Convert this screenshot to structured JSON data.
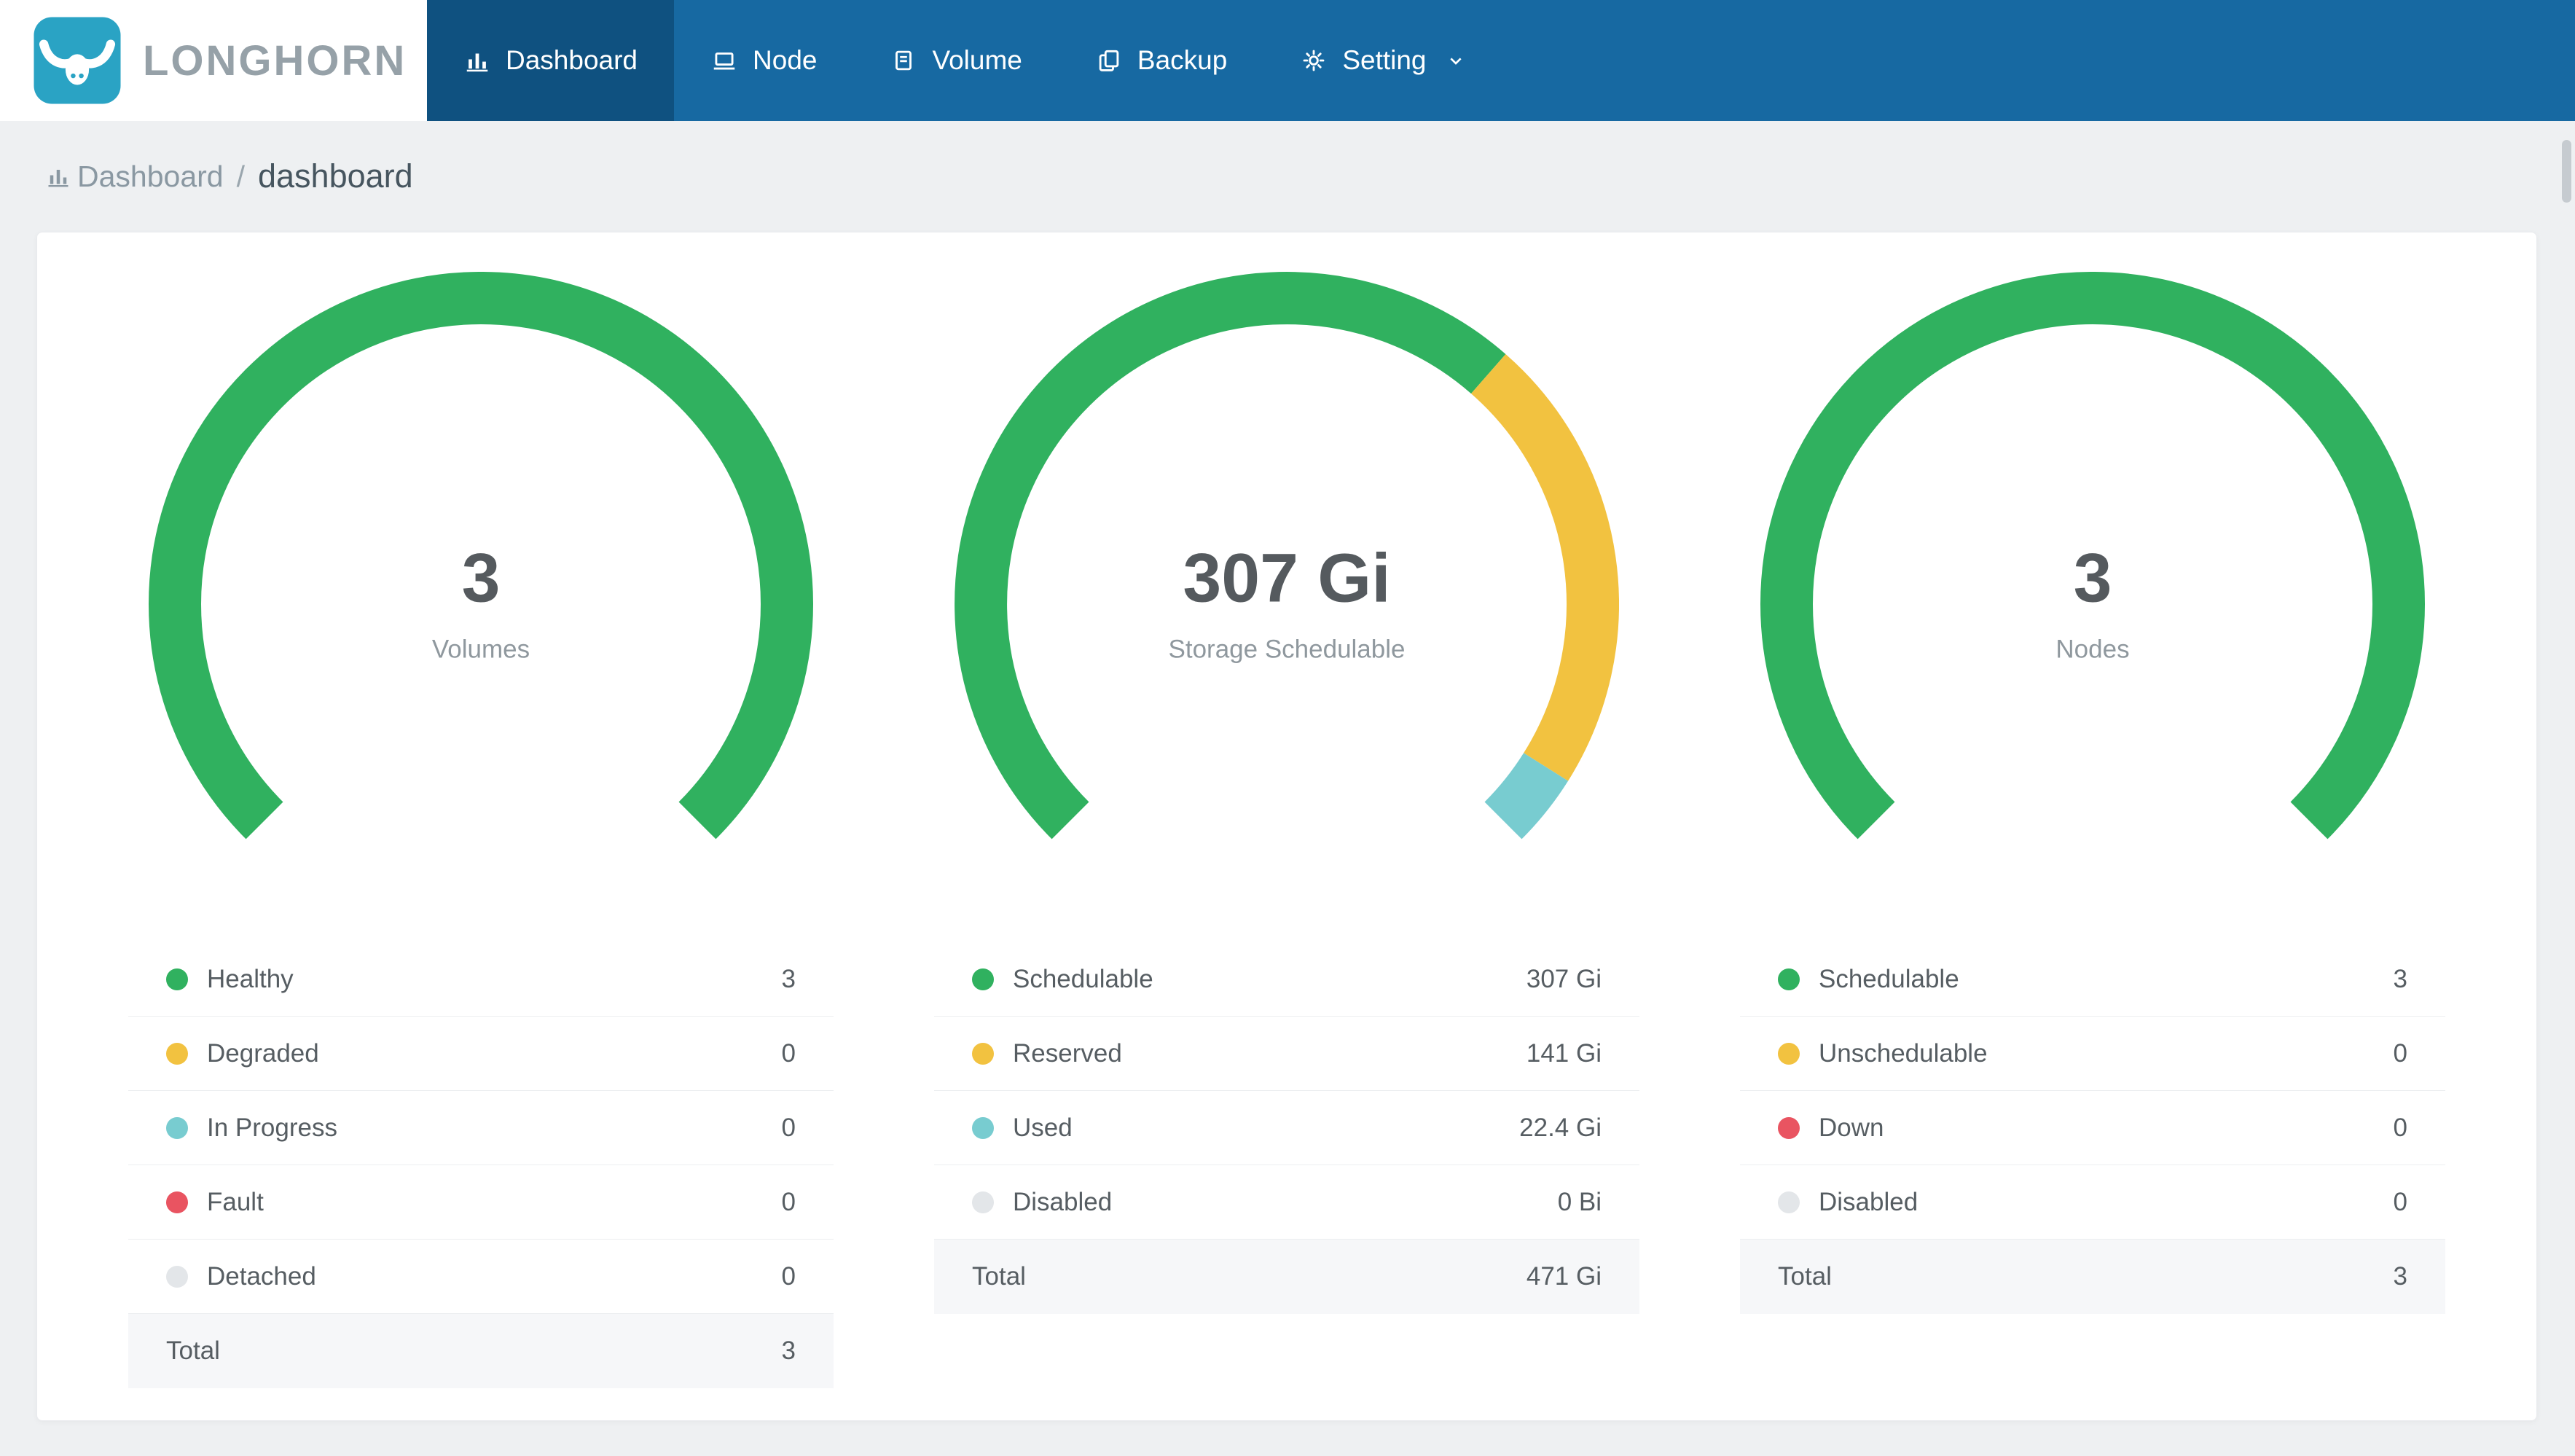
{
  "app": {
    "brand": "LONGHORN"
  },
  "header": {
    "nav": [
      {
        "label": "Dashboard",
        "icon": "dashboard-icon",
        "active": true
      },
      {
        "label": "Node",
        "icon": "node-icon",
        "active": false
      },
      {
        "label": "Volume",
        "icon": "volume-icon",
        "active": false
      },
      {
        "label": "Backup",
        "icon": "backup-icon",
        "active": false
      },
      {
        "label": "Setting",
        "icon": "setting-icon",
        "active": false,
        "has_dropdown": true
      }
    ]
  },
  "breadcrumb": {
    "items": [
      {
        "label": "Dashboard",
        "icon": "bar-chart-icon"
      },
      {
        "label": "dashboard"
      }
    ],
    "separator": "/"
  },
  "colors": {
    "navbar": "#1769a2",
    "navbar_active": "#0f5180",
    "logo_teal": "#2aa3c4",
    "brand_text": "#96a1a8",
    "green": "#30b15f",
    "yellow": "#f2c240",
    "teal": "#78ccd0",
    "red": "#e95461",
    "gray": "#e3e6e9"
  },
  "chart_data": [
    {
      "type": "gauge",
      "center_value": "3",
      "center_label": "Volumes",
      "arc_sweep_deg": 270,
      "segments": [
        {
          "label": "Healthy",
          "value": 3,
          "display": "3",
          "color": "#30b15f"
        },
        {
          "label": "Degraded",
          "value": 0,
          "display": "0",
          "color": "#f2c240"
        },
        {
          "label": "In Progress",
          "value": 0,
          "display": "0",
          "color": "#78ccd0"
        },
        {
          "label": "Fault",
          "value": 0,
          "display": "0",
          "color": "#e95461"
        },
        {
          "label": "Detached",
          "value": 0,
          "display": "0",
          "color": "#e3e6e9"
        }
      ],
      "total": {
        "label": "Total",
        "display": "3"
      }
    },
    {
      "type": "gauge",
      "center_value": "307 Gi",
      "center_label": "Storage Schedulable",
      "arc_sweep_deg": 270,
      "segments": [
        {
          "label": "Schedulable",
          "value": 307,
          "display": "307 Gi",
          "color": "#30b15f"
        },
        {
          "label": "Reserved",
          "value": 141,
          "display": "141 Gi",
          "color": "#f2c240"
        },
        {
          "label": "Used",
          "value": 22.4,
          "display": "22.4 Gi",
          "color": "#78ccd0"
        },
        {
          "label": "Disabled",
          "value": 0,
          "display": "0 Bi",
          "color": "#e3e6e9"
        }
      ],
      "total": {
        "label": "Total",
        "display": "471 Gi"
      }
    },
    {
      "type": "gauge",
      "center_value": "3",
      "center_label": "Nodes",
      "arc_sweep_deg": 270,
      "segments": [
        {
          "label": "Schedulable",
          "value": 3,
          "display": "3",
          "color": "#30b15f"
        },
        {
          "label": "Unschedulable",
          "value": 0,
          "display": "0",
          "color": "#f2c240"
        },
        {
          "label": "Down",
          "value": 0,
          "display": "0",
          "color": "#e95461"
        },
        {
          "label": "Disabled",
          "value": 0,
          "display": "0",
          "color": "#e3e6e9"
        }
      ],
      "total": {
        "label": "Total",
        "display": "3"
      }
    }
  ]
}
